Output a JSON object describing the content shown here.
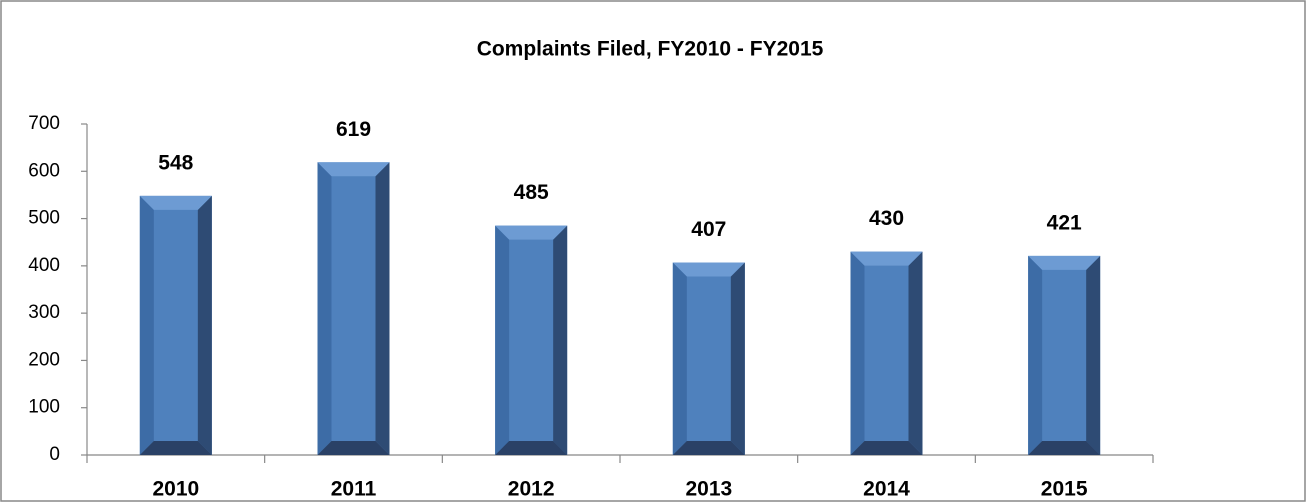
{
  "chart_data": {
    "type": "bar",
    "title": "Complaints Filed, FY2010 - FY2015",
    "categories": [
      "2010",
      "2011",
      "2012",
      "2013",
      "2014",
      "2015"
    ],
    "values": [
      548,
      619,
      485,
      407,
      430,
      421
    ],
    "color": "#4f81bd",
    "ylim": [
      0,
      700
    ],
    "yticks": [
      0,
      100,
      200,
      300,
      400,
      500,
      600,
      700
    ],
    "grid": false
  }
}
